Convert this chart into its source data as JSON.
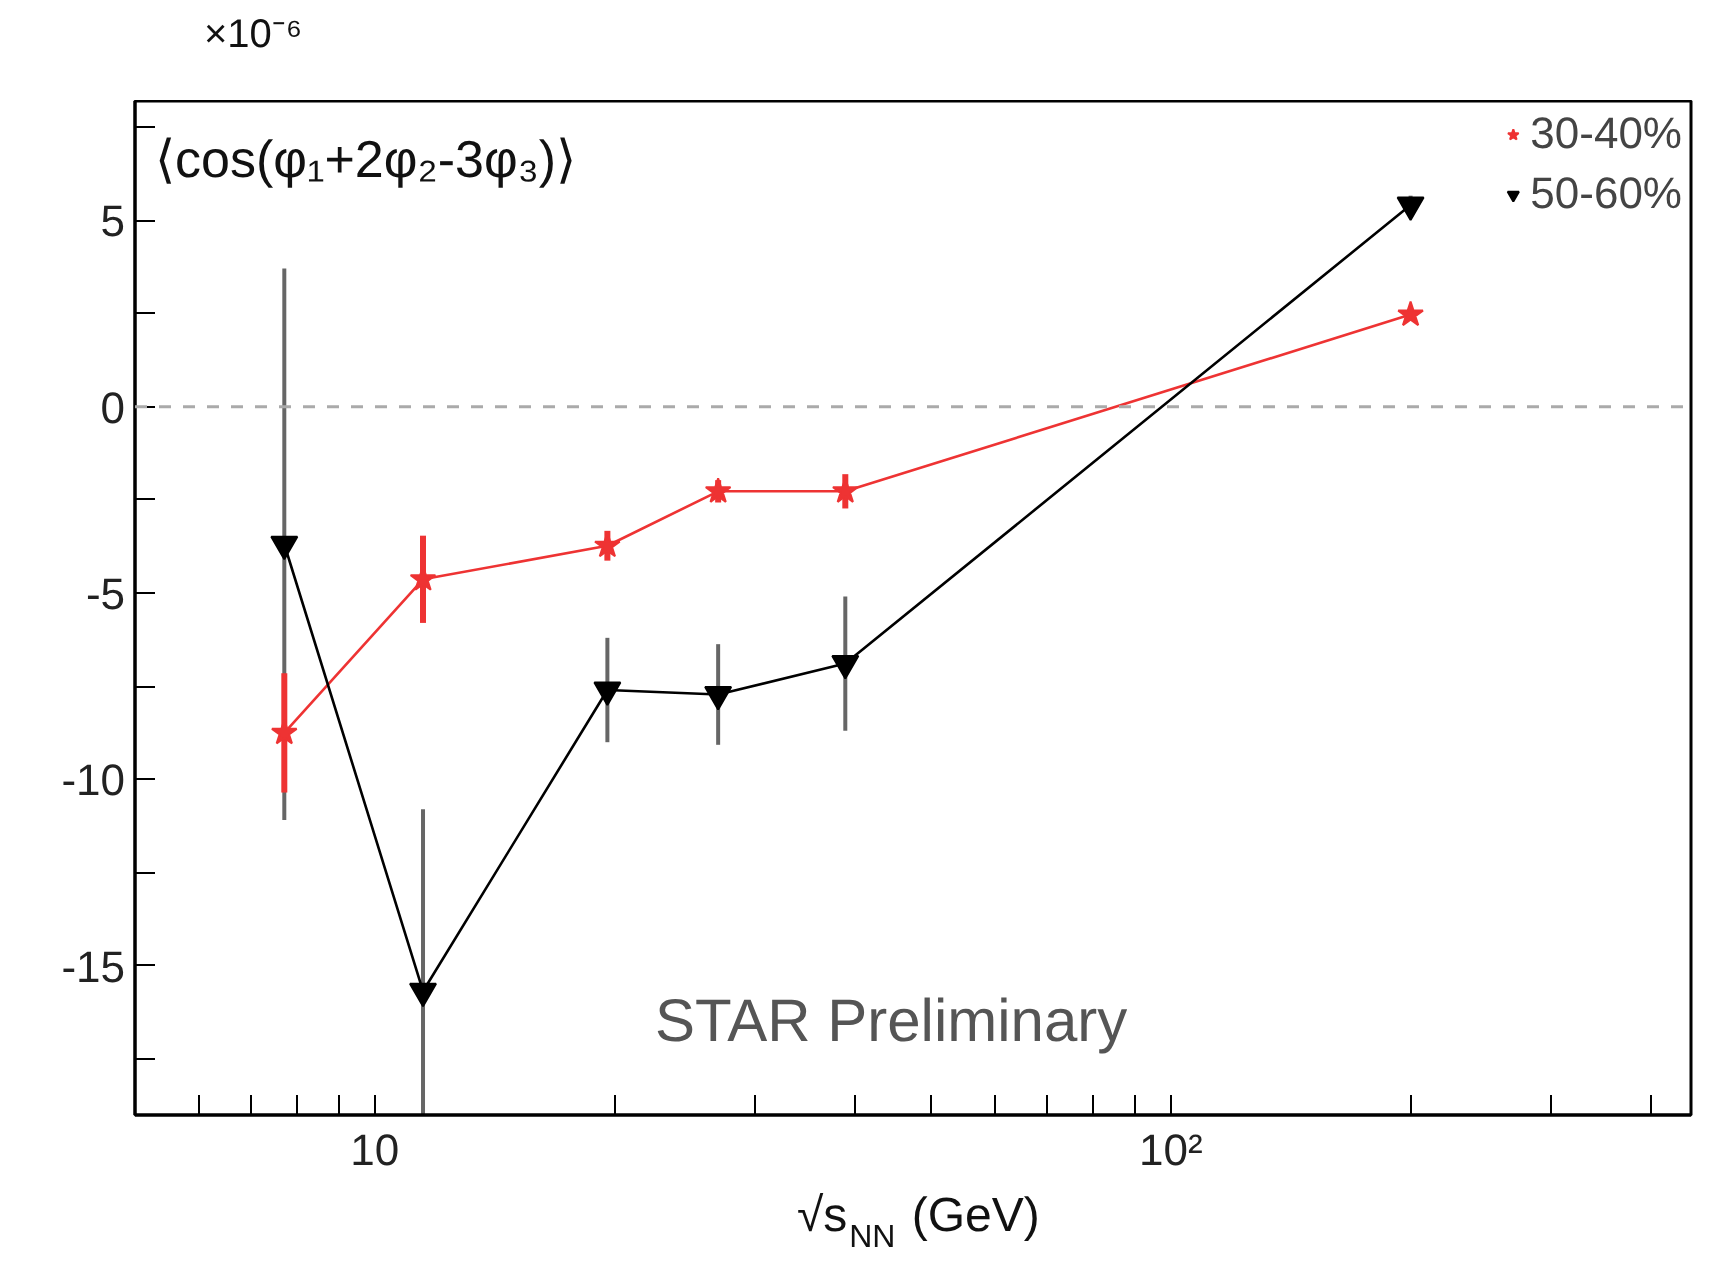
{
  "chart_data": {
    "type": "line",
    "xlabel": "√s$_{NN}$ (GeV)",
    "ylabel": "⟨cos(φ₁+2φ₂-3φ₃)⟩",
    "annotations": [
      "×10⁻⁶",
      "STAR Preliminary"
    ],
    "log": "x",
    "xlim": [
      5,
      450
    ],
    "xticks": [
      {
        "value": 6,
        "label": null
      },
      {
        "value": 7,
        "label": null
      },
      {
        "value": 8,
        "label": null
      },
      {
        "value": 9,
        "label": null
      },
      10,
      {
        "value": 20,
        "label": null
      },
      {
        "value": 30,
        "label": null
      },
      {
        "value": 40,
        "label": null
      },
      {
        "value": 50,
        "label": null
      },
      {
        "value": 60,
        "label": null
      },
      {
        "value": 70,
        "label": null
      },
      {
        "value": 80,
        "label": null
      },
      {
        "value": 90,
        "label": null
      },
      {
        "value": 100,
        "label": "10²"
      },
      {
        "value": 200,
        "label": null
      },
      {
        "value": 300,
        "label": null
      },
      {
        "value": 400,
        "label": null
      }
    ],
    "ylim": [
      -19,
      8.2
    ],
    "yticks": [
      {
        "value": -17.5,
        "label": null
      },
      -15,
      {
        "value": -12.5,
        "label": null
      },
      -10,
      {
        "value": -7.5,
        "label": null
      },
      -5,
      {
        "value": -2.5,
        "label": null
      },
      0,
      {
        "value": 2.5,
        "label": null
      },
      5,
      {
        "value": 7.5,
        "label": null
      }
    ],
    "x": [
      7.7,
      11.5,
      19.6,
      27,
      39,
      200
    ],
    "series": [
      {
        "name": "30-40%",
        "color": "#ee3333",
        "marker": "star",
        "values": [
          -8.75,
          -4.63,
          -3.73,
          -2.27,
          -2.27,
          2.47
        ],
        "errors": [
          1.6,
          1.17,
          0.4,
          0.3,
          0.46,
          0.15
        ]
      },
      {
        "name": "50-60%",
        "color": "#000000",
        "marker": "triangle",
        "values": [
          -3.69,
          -15.68,
          -7.6,
          -7.72,
          -6.89,
          5.41
        ],
        "errors": [
          7.4,
          [
            -19,
            -10.8
          ],
          1.4,
          1.35,
          1.8,
          0.25
        ]
      }
    ],
    "ref_lines": [
      {
        "axis": "y",
        "value": 0,
        "label": null,
        "color": "#aaaaaa",
        "line_style": "dashed"
      }
    ],
    "legend": "top right",
    "grid": false,
    "line_style": "solid"
  }
}
